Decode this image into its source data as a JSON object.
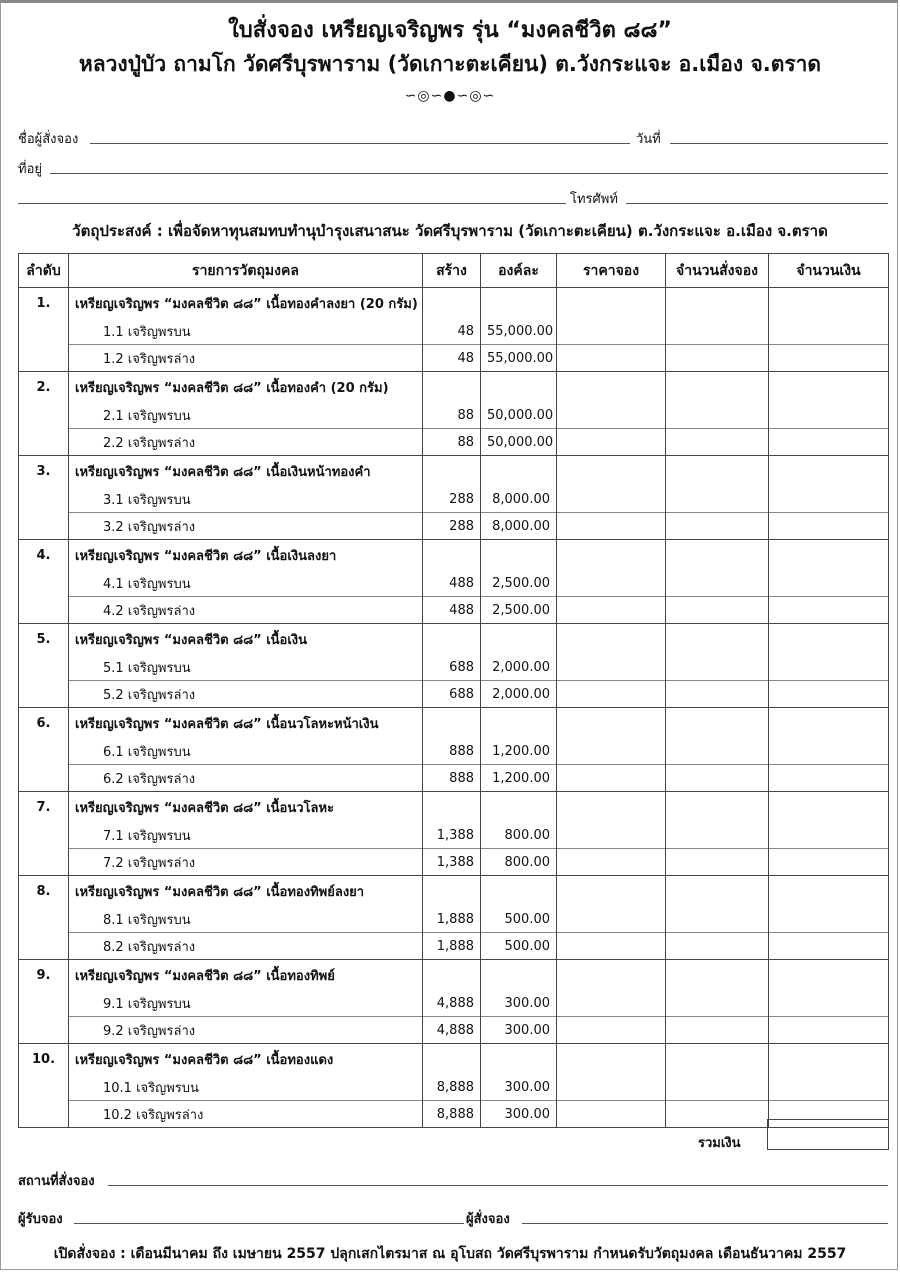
{
  "header": {
    "title": "ใบสั่งจอง เหรียญเจริญพร รุ่น “มงคลชีวิต ๘๘”",
    "subtitle": "หลวงปู่บัว ถามโก  วัดศรีบุรพาราม (วัดเกาะตะเคียน) ต.วังกระแจะ อ.เมือง จ.ตราด",
    "ornament": "∽◎∽●∽◎∽"
  },
  "form": {
    "name_label": "ชื่อผู้สั่งจอง",
    "date_label": "วันที่",
    "address_label": "ที่อยู่",
    "phone_label": "โทรศัพท์"
  },
  "purpose": "วัตถุประสงค์ : เพื่อจัดหาทุนสมทบทำนุบำรุงเสนาสนะ วัดศรีบุรพาราม (วัดเกาะตะเคียน) ต.วังกระแจะ อ.เมือง จ.ตราด",
  "table": {
    "headers": [
      "ลำดับ",
      "รายการวัตถุมงคล",
      "สร้าง",
      "องค์ละ",
      "ราคาจอง",
      "จำนวนสั่งจอง",
      "จำนวนเงิน"
    ],
    "items": [
      {
        "no": "1.",
        "title": "เหรียญเจริญพร “มงคลชีวิต ๘๘” เนื้อทองคำลงยา (20 กรัม)",
        "subs": [
          {
            "label": "1.1 เจริญพรบน",
            "qty": "48",
            "price": "55,000.00"
          },
          {
            "label": "1.2 เจริญพรล่าง",
            "qty": "48",
            "price": "55,000.00"
          }
        ]
      },
      {
        "no": "2.",
        "title": "เหรียญเจริญพร “มงคลชีวิต ๘๘” เนื้อทองคำ (20 กรัม)",
        "subs": [
          {
            "label": "2.1 เจริญพรบน",
            "qty": "88",
            "price": "50,000.00"
          },
          {
            "label": "2.2 เจริญพรล่าง",
            "qty": "88",
            "price": "50,000.00"
          }
        ]
      },
      {
        "no": "3.",
        "title": "เหรียญเจริญพร “มงคลชีวิต ๘๘” เนื้อเงินหน้าทองคำ",
        "subs": [
          {
            "label": "3.1 เจริญพรบน",
            "qty": "288",
            "price": "8,000.00"
          },
          {
            "label": "3.2 เจริญพรล่าง",
            "qty": "288",
            "price": "8,000.00"
          }
        ]
      },
      {
        "no": "4.",
        "title": "เหรียญเจริญพร “มงคลชีวิต ๘๘” เนื้อเงินลงยา",
        "subs": [
          {
            "label": "4.1 เจริญพรบน",
            "qty": "488",
            "price": "2,500.00"
          },
          {
            "label": "4.2 เจริญพรล่าง",
            "qty": "488",
            "price": "2,500.00"
          }
        ]
      },
      {
        "no": "5.",
        "title": "เหรียญเจริญพร “มงคลชีวิต ๘๘” เนื้อเงิน",
        "subs": [
          {
            "label": "5.1 เจริญพรบน",
            "qty": "688",
            "price": "2,000.00"
          },
          {
            "label": "5.2 เจริญพรล่าง",
            "qty": "688",
            "price": "2,000.00"
          }
        ]
      },
      {
        "no": "6.",
        "title": "เหรียญเจริญพร “มงคลชีวิต ๘๘” เนื้อนวโลหะหน้าเงิน",
        "subs": [
          {
            "label": "6.1 เจริญพรบน",
            "qty": "888",
            "price": "1,200.00"
          },
          {
            "label": "6.2 เจริญพรล่าง",
            "qty": "888",
            "price": "1,200.00"
          }
        ]
      },
      {
        "no": "7.",
        "title": "เหรียญเจริญพร “มงคลชีวิต ๘๘” เนื้อนวโลหะ",
        "subs": [
          {
            "label": "7.1 เจริญพรบน",
            "qty": "1,388",
            "price": "800.00"
          },
          {
            "label": "7.2 เจริญพรล่าง",
            "qty": "1,388",
            "price": "800.00"
          }
        ]
      },
      {
        "no": "8.",
        "title": "เหรียญเจริญพร “มงคลชีวิต ๘๘” เนื้อทองทิพย์ลงยา",
        "subs": [
          {
            "label": "8.1 เจริญพรบน",
            "qty": "1,888",
            "price": "500.00"
          },
          {
            "label": "8.2 เจริญพรล่าง",
            "qty": "1,888",
            "price": "500.00"
          }
        ]
      },
      {
        "no": "9.",
        "title": "เหรียญเจริญพร “มงคลชีวิต ๘๘” เนื้อทองทิพย์",
        "subs": [
          {
            "label": "9.1 เจริญพรบน",
            "qty": "4,888",
            "price": "300.00"
          },
          {
            "label": "9.2 เจริญพรล่าง",
            "qty": "4,888",
            "price": "300.00"
          }
        ]
      },
      {
        "no": "10.",
        "title": "เหรียญเจริญพร “มงคลชีวิต ๘๘” เนื้อทองแดง",
        "subs": [
          {
            "label": "10.1 เจริญพรบน",
            "qty": "8,888",
            "price": "300.00"
          },
          {
            "label": "10.2 เจริญพรล่าง",
            "qty": "8,888",
            "price": "300.00"
          }
        ]
      }
    ]
  },
  "total_label": "รวมเงิน",
  "bottom": {
    "place_label": "สถานที่สั่งจอง",
    "receiver_label": "ผู้รับจอง",
    "orderer_label": "ผู้สั่งจอง"
  },
  "footer": "เปิดสั่งจอง : เดือนมีนาคม ถึง เมษายน 2557 ปลุกเสกไตรมาส ณ อุโบสถ วัดศรีบุรพาราม กำหนดรับวัตถุมงคล เดือนธันวาคม 2557"
}
